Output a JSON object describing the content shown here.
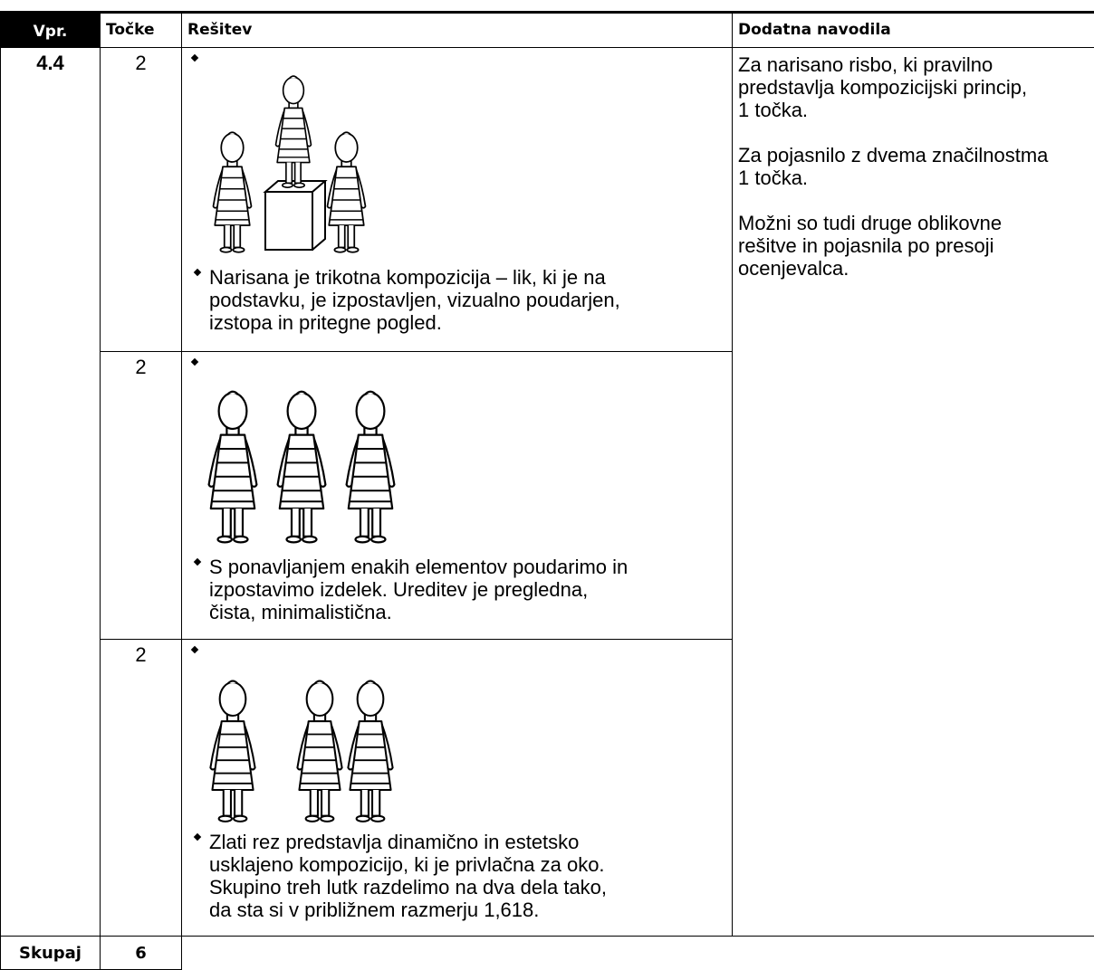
{
  "header": {
    "question": "Vpr.",
    "points": "Točke",
    "solution": "Rešitev",
    "notes": "Dodatna navodila"
  },
  "question": "4.4",
  "items": [
    {
      "points": "2",
      "text_lines": [
        "Narisana je trikotna kompozicija – lik, ki je na",
        "podstavku, je izpostavljen, vizualno poudarjen,",
        "izstopa in pritegne pogled."
      ]
    },
    {
      "points": "2",
      "text_lines": [
        "S ponavljanjem enakih elementov poudarimo in",
        "izpostavimo izdelek. Ureditev je pregledna,",
        "čista, minimalistična."
      ]
    },
    {
      "points": "2",
      "text_lines": [
        "Zlati rez predstavlja dinamično in estetsko",
        "usklajeno kompozicijo, ki je privlačna za oko.",
        "Skupino treh lutk razdelimo na dva dela tako,",
        "da sta si v približnem razmerju 1,618."
      ]
    }
  ],
  "notes": [
    [
      "Za narisano risbo, ki pravilno",
      "predstavlja kompozicijski princip,",
      "1 točka."
    ],
    [
      "Za pojasnilo z dvema značilnostma",
      "1 točka."
    ],
    [
      "Možni so tudi druge oblikovne",
      "rešitve in pojasnila po presoji",
      "ocenjevalca."
    ]
  ],
  "total": {
    "label": "Skupaj",
    "points": "6"
  }
}
